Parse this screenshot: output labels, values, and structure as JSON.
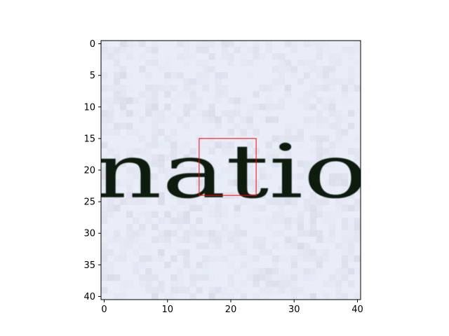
{
  "chart_data": {
    "type": "heatmap",
    "title": "",
    "xlabel": "",
    "ylabel": "",
    "xlim": [
      -0.5,
      40.5
    ],
    "ylim": [
      40.5,
      -0.5
    ],
    "x_ticks": [
      0,
      10,
      20,
      30,
      40
    ],
    "y_ticks": [
      0,
      5,
      10,
      15,
      20,
      25,
      30,
      35,
      40
    ],
    "grid": false,
    "image_text": "natio",
    "image_background_color": "#e9edf8",
    "image_ink_color": "#0d1a10",
    "highlight_box": {
      "x0": 15,
      "y0": 15,
      "x1": 24,
      "y1": 24,
      "color": "#ff0000"
    }
  }
}
